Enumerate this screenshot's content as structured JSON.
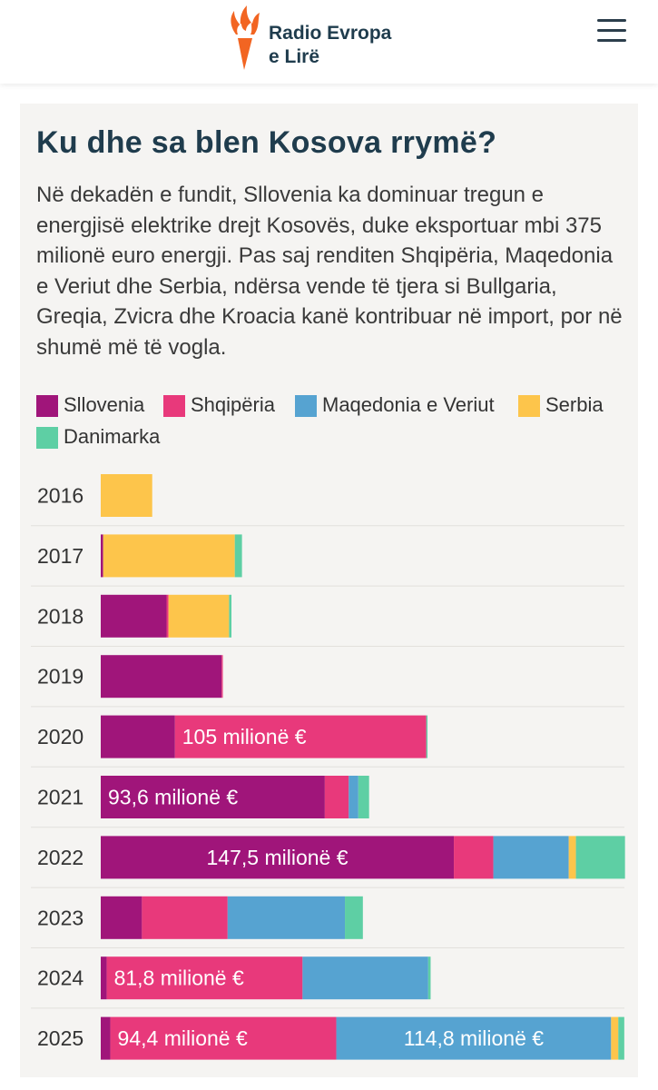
{
  "header": {
    "logo_line1": "Radio Evropa",
    "logo_line2": "e Lirë",
    "logo_icon": "torch-icon",
    "menu_icon": "hamburger-menu-icon",
    "accent_color": "#f26522"
  },
  "chart_data": {
    "type": "bar",
    "orientation": "horizontal",
    "stacked": true,
    "title": "Ku dhe sa blen Kosova rrymë?",
    "subtitle": "Në dekadën e fundit, Sllovenia ka dominuar tregun e energjisë elektrike drejt Kosovës, duke eksportuar mbi 375 milionë euro energji. Pas saj renditen Shqipëria, Maqedonia e Veriut dhe Serbia, ndërsa vende të tjera si Bullgaria, Greqia, Zvicra dhe Kroacia kanë kontribuar në import, por në shumë më të vogla.",
    "categories": [
      "2016",
      "2017",
      "2018",
      "2019",
      "2020",
      "2021",
      "2022",
      "2023",
      "2024",
      "2025"
    ],
    "legend_position": "top",
    "grid": false,
    "unit": "milionë €",
    "xlim": [
      0,
      218
    ],
    "series": [
      {
        "name": "Sllovenia",
        "color": "#a0157a",
        "values": [
          0,
          1,
          27.5,
          50.5,
          31,
          93.6,
          147.5,
          17.2,
          2.5,
          4
        ]
      },
      {
        "name": "Shqipëria",
        "color": "#e8397b",
        "values": [
          0,
          0,
          0.8,
          0.5,
          105,
          10,
          16.5,
          35.8,
          81.8,
          94.4
        ]
      },
      {
        "name": "Maqedonia e Veriut",
        "color": "#56a3d1",
        "values": [
          0,
          0,
          0,
          0,
          0,
          4,
          31.5,
          49,
          52.5,
          114.8
        ]
      },
      {
        "name": "Serbia",
        "color": "#fdc54b",
        "values": [
          21.5,
          55,
          25.3,
          0,
          0,
          0,
          3,
          0,
          0,
          3
        ]
      },
      {
        "name": "Danimarka",
        "color": "#5ecfa4",
        "values": [
          0,
          3,
          1,
          0,
          0.5,
          4.5,
          20.5,
          7.5,
          1,
          2.5
        ]
      }
    ],
    "data_labels": [
      {
        "category": "2020",
        "series": "Shqipëria",
        "text": "105 milionë €"
      },
      {
        "category": "2021",
        "series": "Sllovenia",
        "text": "93,6 milionë €"
      },
      {
        "category": "2022",
        "series": "Sllovenia",
        "text": "147,5 milionë €"
      },
      {
        "category": "2024",
        "series": "Shqipëria",
        "text": "81,8 milionë €"
      },
      {
        "category": "2025",
        "series": "Shqipëria",
        "text": "94,4 milionë €"
      },
      {
        "category": "2025",
        "series": "Maqedonia e Veriut",
        "text": "114,8 milionë €"
      }
    ]
  }
}
